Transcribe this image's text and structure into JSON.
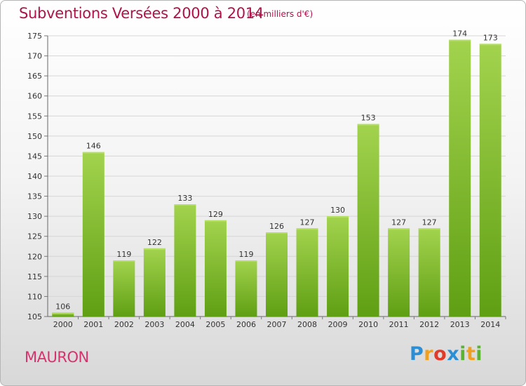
{
  "title": "Subventions Versées 2000 à 2014",
  "subtitle": "(en milliers d'€)",
  "commune": "MAURON",
  "brand": "Proxiti",
  "colors": {
    "title": "#b0124a",
    "commune": "#d8326e",
    "bar_light": "#9fd04a",
    "bar_dark": "#5f9f14"
  },
  "chart_data": {
    "type": "bar",
    "title": "Subventions Versées 2000 à 2014",
    "subtitle": "(en milliers d'€)",
    "xlabel": "",
    "ylabel": "",
    "categories": [
      "2000",
      "2001",
      "2002",
      "2003",
      "2004",
      "2005",
      "2006",
      "2007",
      "2008",
      "2009",
      "2010",
      "2011",
      "2012",
      "2013",
      "2014"
    ],
    "values": [
      106,
      146,
      119,
      122,
      133,
      129,
      119,
      126,
      127,
      130,
      153,
      127,
      127,
      174,
      173
    ],
    "ylim": [
      105,
      175
    ],
    "yticks": [
      105,
      110,
      115,
      120,
      125,
      130,
      135,
      140,
      145,
      150,
      155,
      160,
      165,
      170,
      175
    ],
    "grid": true,
    "legend": "none"
  }
}
